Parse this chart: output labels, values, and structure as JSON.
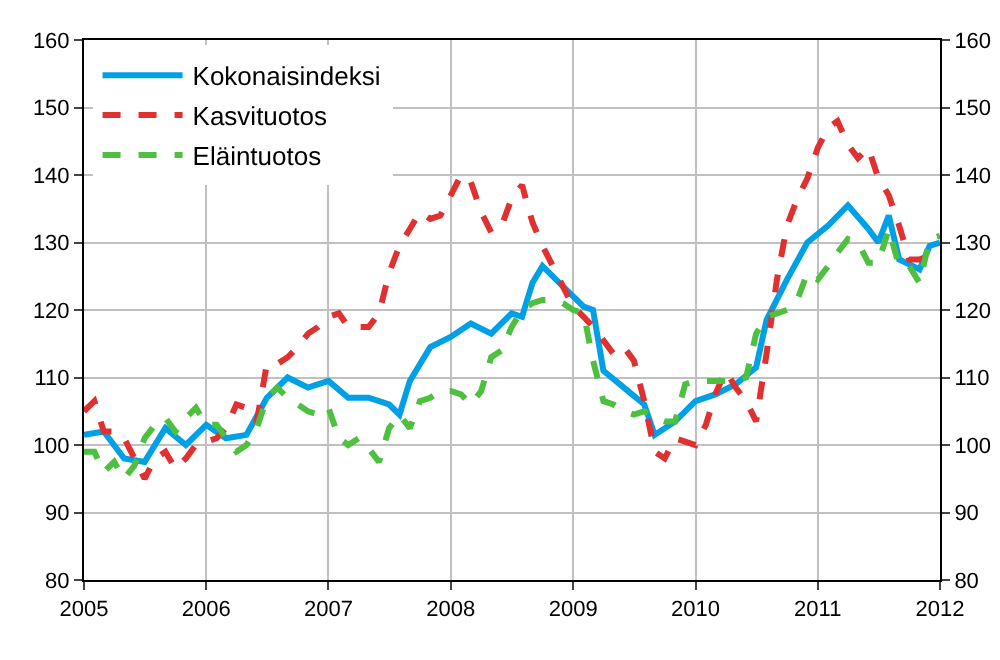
{
  "chart_data": {
    "type": "line",
    "x": [
      "2005-01",
      "2005-02",
      "2005-03",
      "2005-04",
      "2005-05",
      "2005-06",
      "2005-07",
      "2005-08",
      "2005-09",
      "2005-10",
      "2005-11",
      "2005-12",
      "2006-01",
      "2006-02",
      "2006-03",
      "2006-04",
      "2006-05",
      "2006-06",
      "2006-07",
      "2006-08",
      "2006-09",
      "2006-10",
      "2006-11",
      "2006-12",
      "2007-01",
      "2007-02",
      "2007-03",
      "2007-04",
      "2007-05",
      "2007-06",
      "2007-07",
      "2007-08",
      "2007-09",
      "2007-10",
      "2007-11",
      "2007-12",
      "2008-01",
      "2008-02",
      "2008-03",
      "2008-04",
      "2008-05",
      "2008-06",
      "2008-07",
      "2008-08",
      "2008-09",
      "2008-10",
      "2008-11",
      "2008-12",
      "2009-01",
      "2009-02",
      "2009-03",
      "2009-04",
      "2009-05",
      "2009-06",
      "2009-07",
      "2009-08",
      "2009-09",
      "2009-10",
      "2009-11",
      "2009-12",
      "2010-01",
      "2010-02",
      "2010-03",
      "2010-04",
      "2010-05",
      "2010-06",
      "2010-07",
      "2010-08",
      "2010-09",
      "2010-10",
      "2010-11",
      "2010-12",
      "2011-01",
      "2011-02",
      "2011-03",
      "2011-04",
      "2011-05",
      "2011-06",
      "2011-07",
      "2011-08",
      "2011-09",
      "2011-10",
      "2011-11",
      "2011-12",
      "2012-01"
    ],
    "series": [
      {
        "name": "Kokonaisindeksi",
        "color": "#00a0e6",
        "line_style": "solid",
        "x": [
          "2005-01",
          "2005-03",
          "2005-05",
          "2005-07",
          "2005-09",
          "2005-11",
          "2006-01",
          "2006-03",
          "2006-05",
          "2006-07",
          "2006-09",
          "2006-11",
          "2007-01",
          "2007-03",
          "2007-05",
          "2007-07",
          "2007-08",
          "2007-09",
          "2007-11",
          "2008-01",
          "2008-03",
          "2008-05",
          "2008-07",
          "2008-08",
          "2008-09",
          "2008-10",
          "2008-12",
          "2009-02",
          "2009-03",
          "2009-04",
          "2009-06",
          "2009-08",
          "2009-09",
          "2009-11",
          "2010-01",
          "2010-03",
          "2010-05",
          "2010-07",
          "2010-08",
          "2010-10",
          "2010-12",
          "2011-02",
          "2011-04",
          "2011-06",
          "2011-07",
          "2011-08",
          "2011-09",
          "2011-11",
          "2011-12",
          "2012-01"
        ],
        "values": [
          101.5,
          102,
          98,
          97.5,
          102.5,
          100,
          103,
          101,
          101.5,
          107,
          110,
          108.5,
          109.5,
          107,
          107,
          106,
          104.5,
          109.5,
          114.5,
          116,
          118,
          116.5,
          119.5,
          119,
          124,
          126.5,
          123.5,
          120.5,
          120,
          111,
          108.5,
          106,
          101.5,
          103.5,
          106.5,
          107.5,
          109,
          111.5,
          118.5,
          124.5,
          130,
          132.5,
          135.5,
          132,
          130,
          134,
          127.5,
          126,
          129.5,
          130
        ]
      },
      {
        "name": "Kasvituotos",
        "color": "#e03030",
        "line_style": "dashed",
        "values": [
          105,
          106.5,
          102,
          102,
          101,
          98,
          95,
          98,
          99,
          96.5,
          98,
          100,
          100.5,
          101,
          102.5,
          106,
          105.5,
          103.5,
          112,
          112,
          113,
          114.5,
          116.5,
          117.5,
          119,
          119.5,
          117.5,
          117.5,
          117.5,
          119.5,
          125.5,
          129.5,
          132,
          134.5,
          133.5,
          134,
          137,
          140,
          139,
          134.5,
          131.5,
          132.5,
          136.5,
          138.5,
          133,
          129.5,
          126.5,
          123.5,
          120.5,
          119,
          117.5,
          115.5,
          113.5,
          114.5,
          112.5,
          106.5,
          99,
          98,
          101,
          100.5,
          100,
          103,
          107.5,
          111,
          108.5,
          106.5,
          103.5,
          113.5,
          124.5,
          132.5,
          136.5,
          139.5,
          144,
          147,
          148,
          144.5,
          142.5,
          144,
          139.5,
          137,
          132.5,
          127.5,
          127.5,
          128,
          129
        ]
      },
      {
        "name": "Eläintuotos",
        "color": "#4ec040",
        "line_style": "dashed",
        "values": [
          99,
          99,
          96,
          97.5,
          95,
          97,
          101,
          103,
          104,
          102,
          104,
          105.5,
          103,
          103,
          101,
          99,
          100,
          102.5,
          107,
          108.5,
          107,
          106,
          105,
          104.5,
          105.5,
          101,
          100,
          101,
          99.5,
          97.5,
          102.5,
          104.5,
          102.5,
          106.5,
          107,
          108,
          108,
          107.5,
          106,
          108,
          113,
          114,
          117.5,
          120,
          121,
          121.5,
          121.5,
          121,
          120,
          119.5,
          112.5,
          106.5,
          106,
          105,
          104.5,
          105,
          104,
          103.5,
          103.5,
          109,
          109.5,
          109.5,
          109.5,
          109.5,
          109.5,
          110,
          116.5,
          119,
          119.5,
          120,
          121.5,
          125.5,
          124.5,
          126.5,
          128.5,
          130.5,
          130,
          127,
          127,
          132,
          126.5,
          126.5,
          124,
          130.5,
          131
        ]
      }
    ],
    "xlim": [
      "2005",
      "2012"
    ],
    "xticks": [
      "2005",
      "2006",
      "2007",
      "2008",
      "2009",
      "2010",
      "2011",
      "2012"
    ],
    "ylim": [
      80,
      160
    ],
    "yticks": [
      80,
      90,
      100,
      110,
      120,
      130,
      140,
      150,
      160
    ],
    "y2lim": [
      80,
      160
    ],
    "y2ticks": [
      80,
      90,
      100,
      110,
      120,
      130,
      140,
      150,
      160
    ],
    "grid": true,
    "legend": "top left",
    "marker": "none"
  }
}
